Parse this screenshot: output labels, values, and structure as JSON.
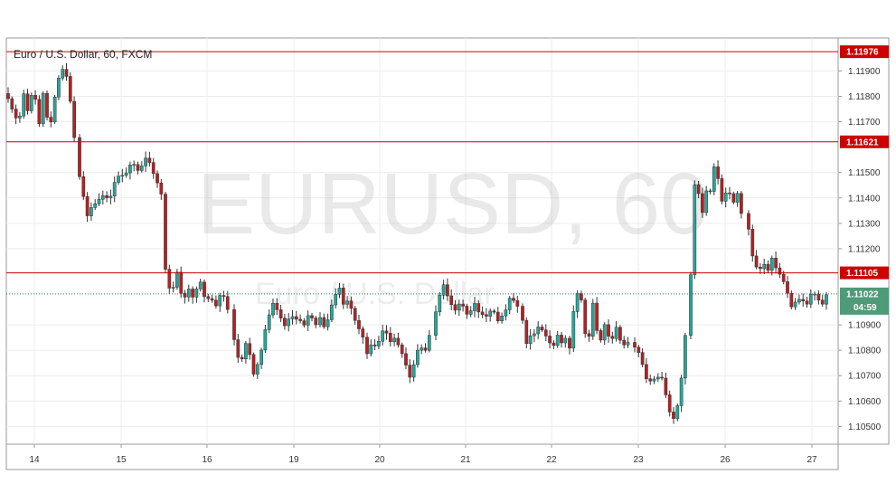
{
  "chart_data": {
    "type": "candlestick",
    "title": "Euro / U.S. Dollar, 60, FXCM",
    "watermark": "EURUSD, 60",
    "watermark_sub": "Euro / U.S. Dollar",
    "ylim": [
      1.1043,
      1.1203
    ],
    "y_ticks": [
      {
        "value": 1.105,
        "label": "1.10500"
      },
      {
        "value": 1.106,
        "label": "1.10600"
      },
      {
        "value": 1.107,
        "label": "1.10700"
      },
      {
        "value": 1.108,
        "label": "1.10800"
      },
      {
        "value": 1.109,
        "label": "1.10900"
      },
      {
        "value": 1.112,
        "label": "1.11200"
      },
      {
        "value": 1.113,
        "label": "1.11300"
      },
      {
        "value": 1.114,
        "label": "1.11400"
      },
      {
        "value": 1.115,
        "label": "1.11500"
      },
      {
        "value": 1.117,
        "label": "1.11700"
      },
      {
        "value": 1.118,
        "label": "1.11800"
      },
      {
        "value": 1.119,
        "label": "1.11900"
      }
    ],
    "x_ticks": [
      "14",
      "15",
      "16",
      "19",
      "20",
      "21",
      "22",
      "23",
      "26",
      "27"
    ],
    "horizontal_lines": [
      {
        "value": 1.11976,
        "label": "1.11976"
      },
      {
        "value": 1.11621,
        "label": "1.11621"
      },
      {
        "value": 1.11105,
        "label": "1.11105"
      }
    ],
    "current_price": {
      "value": 1.11022,
      "label": "1.11022",
      "countdown": "04:59"
    },
    "grid": true,
    "colors": {
      "up": "#26a69a",
      "down": "#b22222",
      "level_line": "#cc0000",
      "price_label": "#4f9a78",
      "current_line": "#2a7a6a"
    },
    "candle_segments": [
      [
        1.1178,
        1.1174,
        1.1168,
        1.1181,
        1.1172,
        1.1186,
        1.1168,
        1.1183,
        1.1166,
        1.1178,
        1.1188,
        1.1191,
        1.1182,
        1.1163
      ],
      [
        1.1148,
        1.1132,
        1.1138,
        1.1142,
        1.114,
        1.115,
        1.1147,
        1.1154,
        1.115,
        1.1155,
        1.115,
        1.1142
      ],
      [
        1.1112,
        1.1102,
        1.1112,
        1.1098,
        1.1104,
        1.11,
        1.1108,
        1.11,
        1.1101,
        1.1098,
        1.1104,
        1.1097
      ],
      [
        1.1085,
        1.1074,
        1.1084,
        1.107,
        1.1076,
        1.1088,
        1.11,
        1.1096,
        1.109,
        1.1095,
        1.1093,
        1.1089,
        1.1094,
        1.109
      ],
      [
        1.1092,
        1.1088,
        1.1096,
        1.1102,
        1.1106,
        1.1098,
        1.1101,
        1.1094,
        1.1088,
        1.1085
      ],
      [
        1.1078,
        1.1082,
        1.108,
        1.1086,
        1.1088,
        1.1084,
        1.1086,
        1.108,
        1.1076,
        1.107,
        1.1075,
        1.1082,
        1.1078,
        1.1085
      ],
      [
        1.1094,
        1.1106,
        1.1102,
        1.1096,
        1.11,
        1.1094,
        1.1098,
        1.1094,
        1.1092,
        1.1097,
        1.109,
        1.1096,
        1.1102,
        1.1098
      ],
      [
        1.1092,
        1.1082,
        1.1088,
        1.1085,
        1.109,
        1.1086,
        1.1083,
        1.108,
        1.1086,
        1.1083,
        1.1085
      ],
      [
        1.1081,
        1.1104,
        1.11,
        1.108,
        1.1098,
        1.1081,
        1.109,
        1.1082,
        1.1088,
        1.1082,
        1.1084
      ],
      [
        1.1082,
        1.1078,
        1.107,
        1.1068,
        1.1069,
        1.1068,
        1.1056,
        1.1052,
        1.1062,
        1.1086
      ],
      [
        1.111,
        1.1146,
        1.1144,
        1.1132,
        1.1146,
        1.1138,
        1.115,
        1.1154,
        1.114,
        1.1137,
        1.1143,
        1.114,
        1.1138,
        1.1142,
        1.1134
      ],
      [
        1.1128,
        1.1118,
        1.1114,
        1.1112,
        1.1116,
        1.111,
        1.1118,
        1.1112,
        1.111,
        1.1108,
        1.1105,
        1.1098,
        1.1096,
        1.11,
        1.1099,
        1.1101,
        1.1098,
        1.1104,
        1.1102,
        1.11,
        1.1099,
        1.1102
      ]
    ]
  }
}
